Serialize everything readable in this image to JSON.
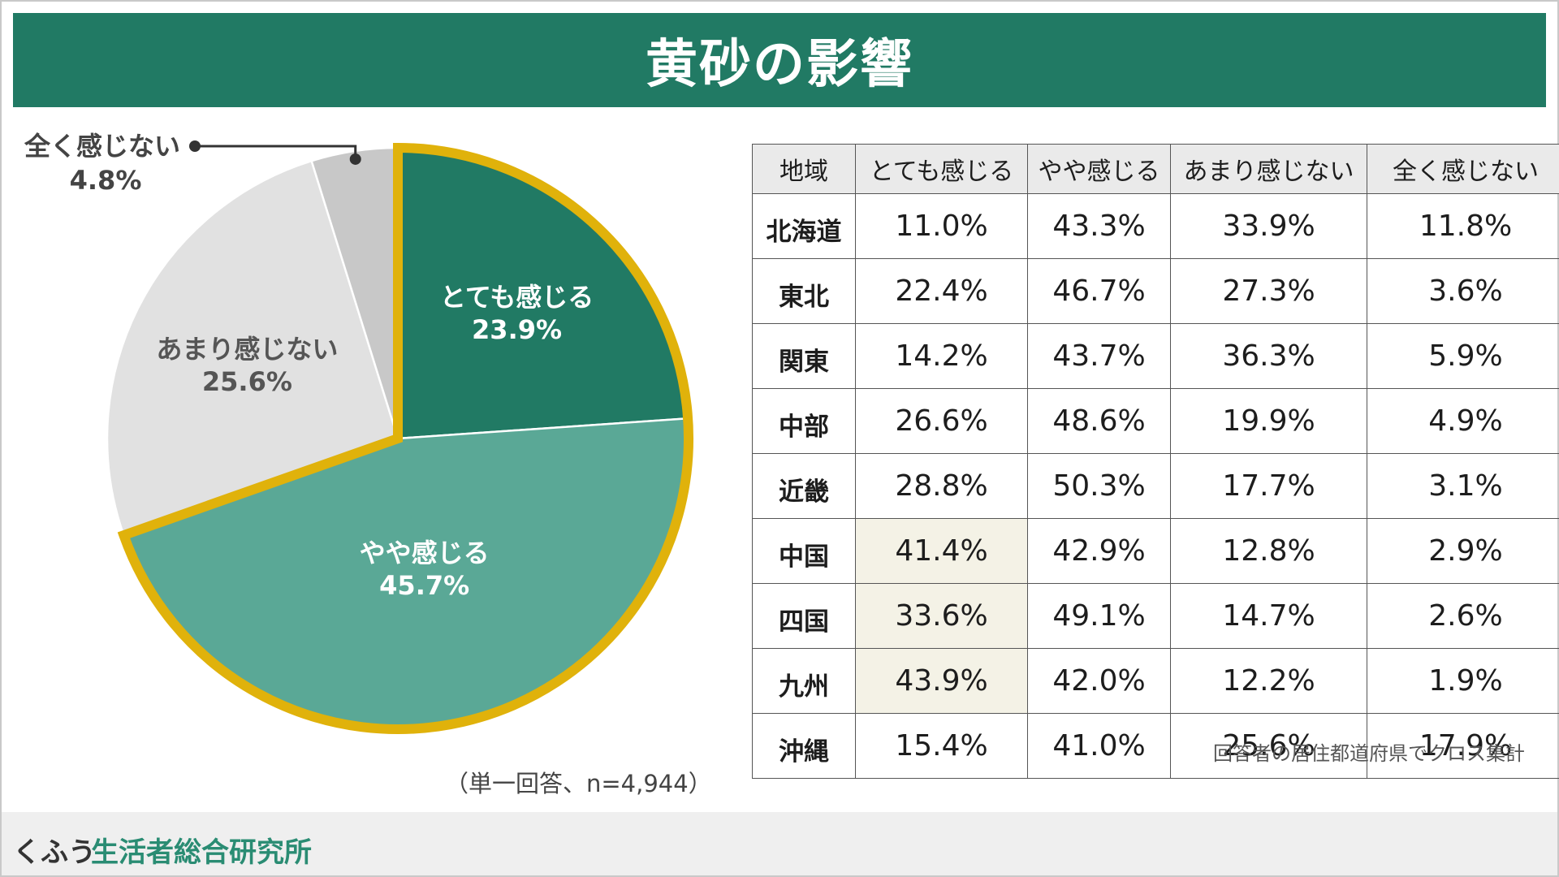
{
  "title": "黄砂の影響",
  "pie": {
    "note": "（単一回答、n=4,944）"
  },
  "chart_data": [
    {
      "type": "pie",
      "slices": [
        {
          "label": "とても感じる",
          "value": 23.9,
          "value_label": "23.9%",
          "color": "#217a64"
        },
        {
          "label": "やや感じる",
          "value": 45.7,
          "value_label": "45.7%",
          "color": "#5aa896"
        },
        {
          "label": "あまり感じない",
          "value": 25.6,
          "value_label": "25.6%",
          "color": "#e1e1e1"
        },
        {
          "label": "全く感じない",
          "value": 4.8,
          "value_label": "4.8%",
          "color": "#c8c8c8"
        }
      ],
      "highlight_color": "#e0b20b",
      "highlighted": [
        "とても感じる",
        "やや感じる"
      ]
    },
    {
      "type": "table",
      "columns": [
        "地域",
        "とても感じる",
        "やや感じる",
        "あまり感じない",
        "全く感じない"
      ],
      "rows": [
        {
          "region": "北海道",
          "values": [
            "11.0%",
            "43.3%",
            "33.9%",
            "11.8%"
          ],
          "highlight_first": false
        },
        {
          "region": "東北",
          "values": [
            "22.4%",
            "46.7%",
            "27.3%",
            "3.6%"
          ],
          "highlight_first": false
        },
        {
          "region": "関東",
          "values": [
            "14.2%",
            "43.7%",
            "36.3%",
            "5.9%"
          ],
          "highlight_first": false
        },
        {
          "region": "中部",
          "values": [
            "26.6%",
            "48.6%",
            "19.9%",
            "4.9%"
          ],
          "highlight_first": false
        },
        {
          "region": "近畿",
          "values": [
            "28.8%",
            "50.3%",
            "17.7%",
            "3.1%"
          ],
          "highlight_first": false
        },
        {
          "region": "中国",
          "values": [
            "41.4%",
            "42.9%",
            "12.8%",
            "2.9%"
          ],
          "highlight_first": true
        },
        {
          "region": "四国",
          "values": [
            "33.6%",
            "49.1%",
            "14.7%",
            "2.6%"
          ],
          "highlight_first": true
        },
        {
          "region": "九州",
          "values": [
            "43.9%",
            "42.0%",
            "12.2%",
            "1.9%"
          ],
          "highlight_first": true
        },
        {
          "region": "沖縄",
          "values": [
            "15.4%",
            "41.0%",
            "25.6%",
            "17.9%"
          ],
          "highlight_first": false
        }
      ],
      "highlight_color": "#f4f2e6"
    }
  ],
  "table_note": "回答者の居住都道府県でクロス集計",
  "footer": {
    "brand_prefix": "くふう",
    "brand_name": "生活者総合研究所"
  }
}
